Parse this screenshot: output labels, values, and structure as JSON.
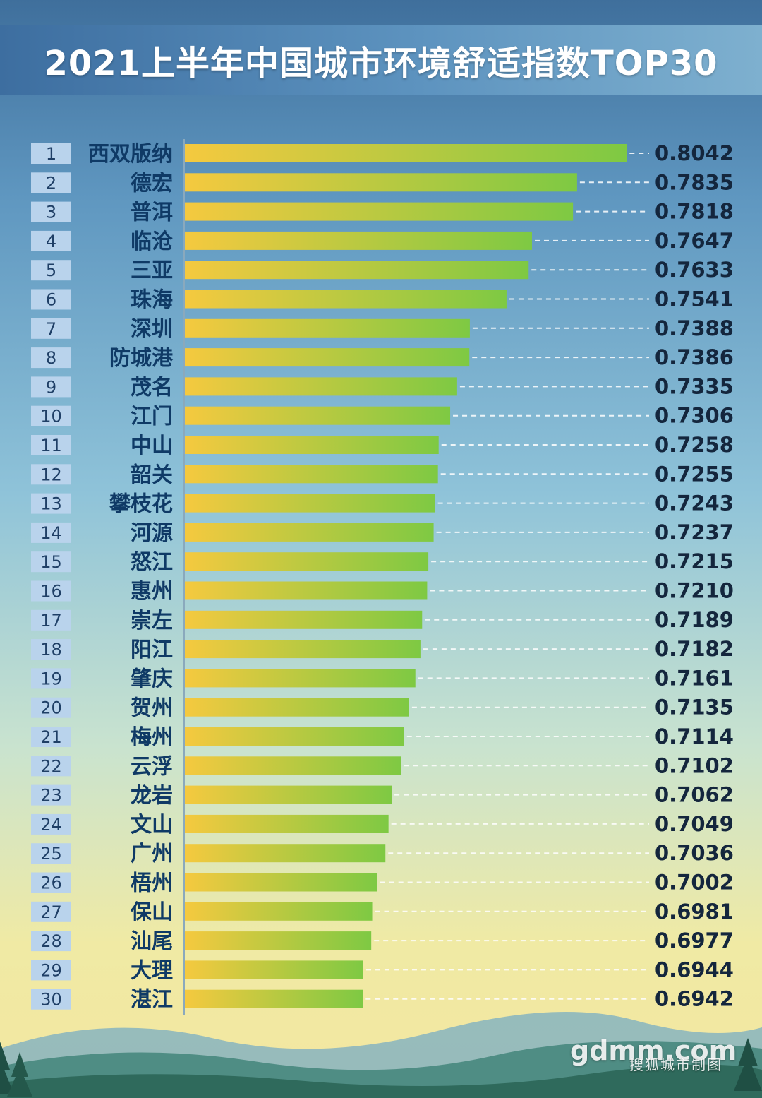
{
  "title": "2021上半年中国城市环境舒适指数TOP30",
  "watermark": {
    "main": "gdmm.com",
    "sub": "搜狐城市制图"
  },
  "colors": {
    "bar_start": "#f5c93f",
    "bar_end": "#7ec943",
    "title_band": "#4a7fb0",
    "rank_box": "#b9d3ec"
  },
  "chart_data": {
    "type": "bar",
    "orientation": "horizontal",
    "title": "2021上半年中国城市环境舒适指数TOP30",
    "xlabel": "",
    "ylabel": "",
    "grid": false,
    "ranks": [
      "1",
      "2",
      "3",
      "4",
      "5",
      "6",
      "7",
      "8",
      "9",
      "10",
      "11",
      "12",
      "13",
      "14",
      "15",
      "16",
      "17",
      "18",
      "19",
      "20",
      "21",
      "22",
      "23",
      "24",
      "25",
      "26",
      "27",
      "28",
      "29",
      "30"
    ],
    "categories": [
      "西双版纳",
      "德宏",
      "普洱",
      "临沧",
      "三亚",
      "珠海",
      "深圳",
      "防城港",
      "茂名",
      "江门",
      "中山",
      "韶关",
      "攀枝花",
      "河源",
      "怒江",
      "惠州",
      "崇左",
      "阳江",
      "肇庆",
      "贺州",
      "梅州",
      "云浮",
      "龙岩",
      "文山",
      "广州",
      "梧州",
      "保山",
      "汕尾",
      "大理",
      "湛江"
    ],
    "values": [
      0.8042,
      0.7835,
      0.7818,
      0.7647,
      0.7633,
      0.7541,
      0.7388,
      0.7386,
      0.7335,
      0.7306,
      0.7258,
      0.7255,
      0.7243,
      0.7237,
      0.7215,
      0.721,
      0.7189,
      0.7182,
      0.7161,
      0.7135,
      0.7114,
      0.7102,
      0.7062,
      0.7049,
      0.7036,
      0.7002,
      0.6981,
      0.6977,
      0.6944,
      0.6942
    ],
    "value_labels": [
      "0.8042",
      "0.7835",
      "0.7818",
      "0.7647",
      "0.7633",
      "0.7541",
      "0.7388",
      "0.7386",
      "0.7335",
      "0.7306",
      "0.7258",
      "0.7255",
      "0.7243",
      "0.7237",
      "0.7215",
      "0.7210",
      "0.7189",
      "0.7182",
      "0.7161",
      "0.7135",
      "0.7114",
      "0.7102",
      "0.7062",
      "0.7049",
      "0.7036",
      "0.7002",
      "0.6981",
      "0.6977",
      "0.6944",
      "0.6942"
    ]
  }
}
